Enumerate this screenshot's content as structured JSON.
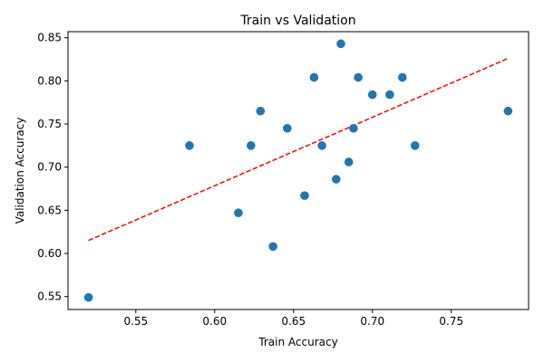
{
  "chart_data": {
    "type": "scatter",
    "title": "Train vs Validation",
    "xlabel": "Train Accuracy",
    "ylabel": "Validation Accuracy",
    "xlim": [
      0.507,
      0.799
    ],
    "ylim": [
      0.535,
      0.857
    ],
    "xticks": [
      0.55,
      0.6,
      0.65,
      0.7,
      0.75
    ],
    "xtick_labels": [
      "0.55",
      "0.60",
      "0.65",
      "0.70",
      "0.75"
    ],
    "yticks": [
      0.55,
      0.6,
      0.65,
      0.7,
      0.75,
      0.8,
      0.85
    ],
    "ytick_labels": [
      "0.55",
      "0.60",
      "0.65",
      "0.70",
      "0.75",
      "0.80",
      "0.85"
    ],
    "grid": false,
    "point_color": "#1f77b4",
    "points": [
      {
        "x": 0.52,
        "y": 0.549
      },
      {
        "x": 0.584,
        "y": 0.725
      },
      {
        "x": 0.615,
        "y": 0.647
      },
      {
        "x": 0.623,
        "y": 0.725
      },
      {
        "x": 0.629,
        "y": 0.765
      },
      {
        "x": 0.637,
        "y": 0.608
      },
      {
        "x": 0.646,
        "y": 0.745
      },
      {
        "x": 0.657,
        "y": 0.667
      },
      {
        "x": 0.663,
        "y": 0.804
      },
      {
        "x": 0.668,
        "y": 0.725
      },
      {
        "x": 0.677,
        "y": 0.686
      },
      {
        "x": 0.68,
        "y": 0.843
      },
      {
        "x": 0.685,
        "y": 0.706
      },
      {
        "x": 0.688,
        "y": 0.745
      },
      {
        "x": 0.691,
        "y": 0.804
      },
      {
        "x": 0.7,
        "y": 0.784
      },
      {
        "x": 0.711,
        "y": 0.784
      },
      {
        "x": 0.719,
        "y": 0.804
      },
      {
        "x": 0.727,
        "y": 0.725
      },
      {
        "x": 0.786,
        "y": 0.765
      }
    ],
    "trendline": {
      "style": "dashed",
      "color": "#ff0000",
      "x": [
        0.52,
        0.786
      ],
      "y": [
        0.615,
        0.826
      ]
    }
  }
}
